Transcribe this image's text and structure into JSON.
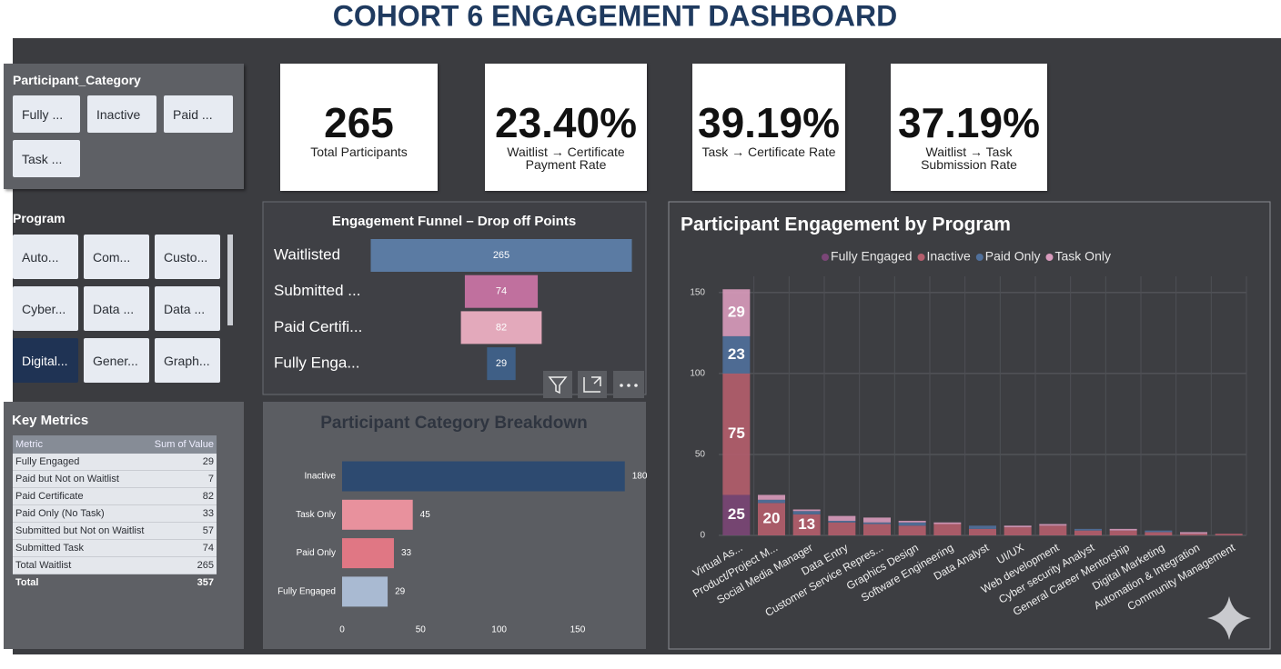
{
  "title": "COHORT 6 ENGAGEMENT DASHBOARD",
  "slicers": [
    {
      "title": "Participant_Category",
      "items": [
        "Fully ...",
        "Inactive",
        "Paid ...",
        "Task ..."
      ]
    },
    {
      "title": "Program",
      "items": [
        "Auto...",
        "Com...",
        "Custo...",
        "Cyber...",
        "Data ...",
        "Data ...",
        "Digital...",
        "Gener...",
        "Graph..."
      ],
      "selected_index": 6
    }
  ],
  "kpis": [
    {
      "value": "265",
      "label": "Total Participants"
    },
    {
      "value": "23.40%",
      "label": "Waitlist → Certificate Payment Rate"
    },
    {
      "value": "39.19%",
      "label": "Task → Certificate Rate"
    },
    {
      "value": "37.19%",
      "label": "Waitlist → Task Submission Rate"
    }
  ],
  "key_metrics": {
    "title": "Key Metrics",
    "columns": [
      "Metric",
      "Sum of Value"
    ],
    "rows": [
      [
        "Fully Engaged",
        "29"
      ],
      [
        "Paid but Not on Waitlist",
        "7"
      ],
      [
        "Paid Certificate",
        "82"
      ],
      [
        "Paid Only (No Task)",
        "33"
      ],
      [
        "Submitted but Not on Waitlist",
        "57"
      ],
      [
        "Submitted Task",
        "74"
      ],
      [
        "Total Waitlist",
        "265"
      ]
    ],
    "total": [
      "Total",
      "357"
    ]
  },
  "chart_data": [
    {
      "type": "funnel",
      "title": "Engagement Funnel – Drop off Points",
      "categories": [
        "Waitlisted",
        "Submitted ...",
        "Paid Certifi...",
        "Fully Enga..."
      ],
      "values": [
        265,
        74,
        82,
        29
      ],
      "colors": [
        "#5b7ba3",
        "#c0709e",
        "#e3a9bb",
        "#3f5f86"
      ]
    },
    {
      "type": "hbar",
      "title": "Participant Category Breakdown",
      "categories": [
        "Inactive",
        "Task Only",
        "Paid Only",
        "Fully Engaged"
      ],
      "values": [
        180,
        45,
        33,
        29
      ],
      "colors": [
        "#2d4a70",
        "#e8919d",
        "#e07784",
        "#a9bad2"
      ],
      "xlim": [
        0,
        190
      ],
      "xticks": [
        0,
        50,
        100,
        150
      ]
    },
    {
      "type": "stacked_bar",
      "title": "Participant Engagement by Program",
      "categories": [
        "Virtual As...",
        "Product/Project M...",
        "Social Media Manager",
        "Data Entry",
        "Customer Service Repres...",
        "Graphics Design",
        "Software Engineering",
        "Data Analyst",
        "UI/UX",
        "Web development",
        "Cyber security Analyst",
        "General Career Mentorship",
        "Digital Marketing",
        "Automation & Integration",
        "Community Management"
      ],
      "series": [
        {
          "name": "Fully Engaged",
          "color": "#7b4677",
          "values": [
            25,
            0,
            0,
            0,
            0,
            0,
            0,
            0,
            0,
            0,
            0,
            0,
            0,
            0,
            0
          ]
        },
        {
          "name": "Inactive",
          "color": "#b55e6d",
          "values": [
            75,
            20,
            13,
            8,
            7,
            6,
            7,
            4,
            5,
            6,
            3,
            3,
            2,
            1,
            1
          ]
        },
        {
          "name": "Paid Only",
          "color": "#50709c",
          "values": [
            23,
            2,
            2,
            1,
            1,
            2,
            0,
            2,
            0,
            0,
            1,
            0,
            1,
            0,
            0
          ]
        },
        {
          "name": "Task Only",
          "color": "#d99bbd",
          "values": [
            29,
            3,
            1,
            3,
            3,
            1,
            1,
            0,
            1,
            1,
            0,
            1,
            0,
            1,
            0
          ]
        }
      ],
      "ylim": [
        0,
        160
      ],
      "yticks": [
        0,
        50,
        100,
        150
      ],
      "grid": true,
      "legend": "top"
    }
  ]
}
